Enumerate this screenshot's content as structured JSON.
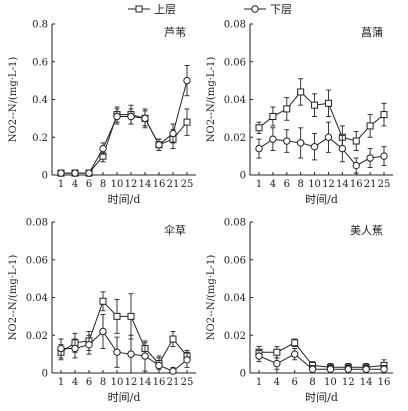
{
  "legend": {
    "upper_label": "上层",
    "lower_label": "下层"
  },
  "chart_data": [
    {
      "type": "line",
      "title": "芦苇",
      "xlabel": "时间/d",
      "ylabel": "NO2--N/(mg·L-1)",
      "ylim": [
        0,
        0.8
      ],
      "yticks": [
        "0",
        "0.2",
        "0.4",
        "0.6",
        "0.8"
      ],
      "categories": [
        "1",
        "4",
        "6",
        "8",
        "10",
        "12",
        "14",
        "16",
        "21",
        "25"
      ],
      "series": [
        {
          "name": "上层",
          "marker": "square",
          "values": [
            0.01,
            0.01,
            0.01,
            0.1,
            0.32,
            0.32,
            0.3,
            0.16,
            0.19,
            0.28
          ],
          "errors": [
            0.005,
            0.005,
            0.005,
            0.03,
            0.04,
            0.05,
            0.04,
            0.03,
            0.05,
            0.07
          ]
        },
        {
          "name": "下层",
          "marker": "circle",
          "values": [
            0.01,
            0.01,
            0.01,
            0.14,
            0.31,
            0.31,
            0.3,
            0.16,
            0.22,
            0.5
          ],
          "errors": [
            0.005,
            0.005,
            0.005,
            0.03,
            0.04,
            0.04,
            0.05,
            0.03,
            0.05,
            0.08
          ]
        }
      ]
    },
    {
      "type": "line",
      "title": "菖蒲",
      "xlabel": "时间/d",
      "ylabel": "NO2--N/(mg·L-1)",
      "ylim": [
        0,
        0.08
      ],
      "yticks": [
        "0",
        "0.02",
        "0.04",
        "0.06",
        "0.08"
      ],
      "categories": [
        "1",
        "4",
        "6",
        "8",
        "10",
        "12",
        "14",
        "16",
        "21",
        "25"
      ],
      "series": [
        {
          "name": "上层",
          "marker": "square",
          "values": [
            0.025,
            0.031,
            0.035,
            0.044,
            0.037,
            0.038,
            0.02,
            0.018,
            0.026,
            0.032
          ],
          "errors": [
            0.003,
            0.005,
            0.006,
            0.007,
            0.006,
            0.007,
            0.006,
            0.005,
            0.006,
            0.006
          ]
        },
        {
          "name": "下层",
          "marker": "circle",
          "values": [
            0.014,
            0.019,
            0.018,
            0.017,
            0.015,
            0.02,
            0.014,
            0.005,
            0.009,
            0.01
          ],
          "errors": [
            0.005,
            0.006,
            0.006,
            0.008,
            0.007,
            0.008,
            0.007,
            0.004,
            0.005,
            0.005
          ]
        }
      ]
    },
    {
      "type": "line",
      "title": "伞草",
      "xlabel": "时间/d",
      "ylabel": "NO2--N/(mg·L-1)",
      "ylim": [
        0,
        0.08
      ],
      "yticks": [
        "0",
        "0.02",
        "0.04",
        "0.06",
        "0.08"
      ],
      "categories": [
        "1",
        "4",
        "6",
        "8",
        "10",
        "12",
        "14",
        "16",
        "21",
        "25"
      ],
      "series": [
        {
          "name": "上层",
          "marker": "square",
          "values": [
            0.011,
            0.016,
            0.017,
            0.038,
            0.03,
            0.03,
            0.013,
            0.005,
            0.018,
            0.009
          ],
          "errors": [
            0.004,
            0.005,
            0.005,
            0.005,
            0.009,
            0.012,
            0.003,
            0.003,
            0.004,
            0.003
          ]
        },
        {
          "name": "下层",
          "marker": "circle",
          "values": [
            0.013,
            0.013,
            0.015,
            0.022,
            0.011,
            0.01,
            0.009,
            0.004,
            0.001,
            0.007
          ],
          "errors": [
            0.005,
            0.005,
            0.005,
            0.009,
            0.008,
            0.01,
            0.008,
            0.005,
            0.002,
            0.004
          ]
        }
      ]
    },
    {
      "type": "line",
      "title": "美人蕉",
      "xlabel": "时间/d",
      "ylabel": "NO2--N/(mg·L-1)",
      "ylim": [
        0,
        0.08
      ],
      "yticks": [
        "0",
        "0.02",
        "0.04",
        "0.06",
        "0.08"
      ],
      "categories": [
        "1",
        "4",
        "6",
        "8",
        "10",
        "12",
        "14",
        "16"
      ],
      "series": [
        {
          "name": "上层",
          "marker": "square",
          "values": [
            0.011,
            0.011,
            0.016,
            0.004,
            0.003,
            0.003,
            0.003,
            0.004
          ],
          "errors": [
            0.003,
            0.003,
            0.002,
            0.002,
            0.002,
            0.002,
            0.002,
            0.003
          ]
        },
        {
          "name": "下层",
          "marker": "circle",
          "values": [
            0.009,
            0.005,
            0.01,
            0.002,
            0.002,
            0.002,
            0.002,
            0.002
          ],
          "errors": [
            0.003,
            0.003,
            0.003,
            0.002,
            0.002,
            0.002,
            0.002,
            0.002
          ]
        }
      ]
    }
  ]
}
